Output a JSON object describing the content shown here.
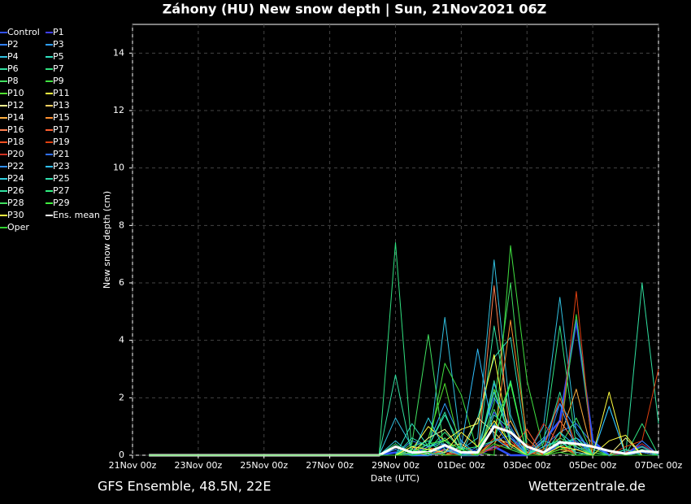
{
  "chart_data": {
    "type": "line",
    "title": "Záhony  (HU)  New snow depth | Sun, 21Nov2021 06Z",
    "y_label": "New snow depth (cm)",
    "x_label": "Date (UTC)",
    "source_left": "GFS Ensemble, 48.5N, 22E",
    "source_right": "Wetterzentrale.de",
    "xlim": [
      0,
      384
    ],
    "ylim": [
      0,
      15
    ],
    "xticks": [
      {
        "value": 0,
        "label": "21Nov 00z"
      },
      {
        "value": 48,
        "label": "23Nov 00z"
      },
      {
        "value": 96,
        "label": "25Nov 00z"
      },
      {
        "value": 144,
        "label": "27Nov 00z"
      },
      {
        "value": 192,
        "label": "29Nov 00z"
      },
      {
        "value": 240,
        "label": "01Dec 00z"
      },
      {
        "value": 288,
        "label": "03Dec 00z"
      },
      {
        "value": 336,
        "label": "05Dec 00z"
      },
      {
        "value": 384,
        "label": "07Dec 00z"
      }
    ],
    "yticks": [
      0,
      2,
      4,
      6,
      8,
      10,
      12,
      14
    ],
    "grid": true,
    "x": [
      12,
      24,
      36,
      48,
      60,
      72,
      84,
      96,
      108,
      120,
      132,
      144,
      156,
      168,
      180,
      192,
      204,
      216,
      228,
      240,
      252,
      264,
      276,
      288,
      300,
      312,
      324,
      336,
      348,
      360,
      372,
      384
    ],
    "series": [
      {
        "name": "Control",
        "color": "#3050ff",
        "values": [
          0,
          0,
          0,
          0,
          0,
          0,
          0,
          0,
          0,
          0,
          0,
          0,
          0,
          0,
          0,
          0.1,
          0,
          0,
          0.2,
          0,
          0,
          0.3,
          0,
          0,
          0.5,
          1.2,
          4.7,
          0.5,
          0,
          0.1,
          0.3,
          0
        ]
      },
      {
        "name": "P1",
        "color": "#4040ff",
        "values": [
          0,
          0,
          0,
          0,
          0,
          0,
          0,
          0,
          0,
          0,
          0,
          0,
          0,
          0,
          0,
          0,
          0.2,
          0.1,
          0.3,
          0,
          0.2,
          1.5,
          0.6,
          0.2,
          0.1,
          0.3,
          0.6,
          0.3,
          0,
          0,
          0.4,
          0
        ]
      },
      {
        "name": "P2",
        "color": "#3080ff",
        "values": [
          0,
          0,
          0,
          0,
          0,
          0,
          0,
          0,
          0,
          0,
          0,
          0,
          0,
          0,
          0,
          0,
          0.5,
          0.3,
          0.6,
          0,
          0.3,
          2.0,
          1.0,
          0,
          0.3,
          0.8,
          1.1,
          0.4,
          0,
          0,
          0.3,
          0
        ]
      },
      {
        "name": "P3",
        "color": "#30a0ff",
        "values": [
          0,
          0,
          0,
          0,
          0,
          0,
          0,
          0,
          0,
          0,
          0,
          0,
          0,
          0,
          0,
          0.2,
          0,
          0.4,
          1.8,
          0.5,
          0,
          2.5,
          0.8,
          0.1,
          0.6,
          1.8,
          0.9,
          0,
          0,
          0,
          0,
          0
        ]
      },
      {
        "name": "P4",
        "color": "#30c0e0",
        "values": [
          0,
          0,
          0,
          0,
          0,
          0,
          0,
          0,
          0,
          0,
          0,
          0,
          0,
          0,
          0,
          1.3,
          0.3,
          0,
          4.8,
          0.2,
          0.6,
          6.8,
          1.4,
          0,
          1.0,
          5.5,
          0.8,
          0,
          1.7,
          0,
          0.5,
          0
        ]
      },
      {
        "name": "P5",
        "color": "#30e0c0",
        "values": [
          0,
          0,
          0,
          0,
          0,
          0,
          0,
          0,
          0,
          0,
          0,
          0,
          0,
          0,
          0,
          0,
          1.1,
          0.3,
          0.5,
          0,
          1.3,
          3.4,
          4.1,
          0.2,
          0,
          0.4,
          0.6,
          0.1,
          0,
          0.2,
          0,
          0
        ]
      },
      {
        "name": "P6",
        "color": "#30e0a0",
        "values": [
          0,
          0,
          0,
          0,
          0,
          0,
          0,
          0,
          0,
          0,
          0,
          0,
          0,
          0,
          0,
          2.8,
          0,
          0.3,
          1.5,
          0,
          0,
          4.5,
          1.2,
          0.1,
          0.2,
          2.2,
          0,
          0,
          0,
          0,
          6.0,
          1.1
        ]
      },
      {
        "name": "P7",
        "color": "#30e080",
        "values": [
          0,
          0,
          0,
          0,
          0,
          0,
          0,
          0,
          0,
          0,
          0,
          0,
          0,
          0,
          0,
          7.4,
          0.1,
          0.2,
          0,
          0.3,
          0,
          0.5,
          2.5,
          0,
          0.4,
          4.5,
          0.3,
          0,
          0,
          0,
          1.1,
          0
        ]
      },
      {
        "name": "P8",
        "color": "#40e060",
        "values": [
          0,
          0,
          0,
          0,
          0,
          0,
          0,
          0,
          0,
          0,
          0,
          0,
          0,
          0,
          0,
          0,
          0.4,
          4.2,
          0,
          0.2,
          0,
          1.8,
          6.0,
          0.3,
          0,
          0.5,
          0,
          0.1,
          0,
          0,
          0,
          0
        ]
      },
      {
        "name": "P9",
        "color": "#40e040",
        "values": [
          0,
          0,
          0,
          0,
          0,
          0,
          0,
          0,
          0,
          0,
          0,
          0,
          0,
          0,
          0,
          0,
          0.1,
          0.2,
          3.2,
          2.1,
          0.1,
          0,
          7.3,
          2.6,
          0.2,
          0.6,
          4.9,
          0.2,
          0,
          0,
          0.3,
          0
        ]
      },
      {
        "name": "P10",
        "color": "#50e030",
        "values": [
          0,
          0,
          0,
          0,
          0,
          0,
          0,
          0,
          0,
          0,
          0,
          0,
          0,
          0,
          0,
          0,
          0,
          0.6,
          2.5,
          0.1,
          0.1,
          2.3,
          0.5,
          0,
          0.2,
          0.3,
          0,
          0,
          0,
          0,
          0,
          0
        ]
      },
      {
        "name": "P11",
        "color": "#ffff40",
        "values": [
          0,
          0,
          0,
          0,
          0,
          0,
          0,
          0,
          0,
          0,
          0,
          0,
          0,
          0,
          0,
          0,
          0.2,
          1.0,
          0.5,
          0.9,
          1.1,
          3.5,
          0.3,
          0,
          0,
          0.2,
          0.1,
          0,
          2.2,
          0,
          0.1,
          0
        ]
      },
      {
        "name": "P12",
        "color": "#ffff90",
        "values": [
          0,
          0,
          0,
          0,
          0,
          0,
          0,
          0,
          0,
          0,
          0,
          0,
          0,
          0,
          0,
          0,
          0.1,
          0.6,
          0.9,
          0.2,
          1.3,
          0.8,
          0.2,
          0,
          0,
          0.1,
          0.2,
          0,
          0,
          0.6,
          0,
          0
        ]
      },
      {
        "name": "P13",
        "color": "#ffd060",
        "values": [
          0,
          0,
          0,
          0,
          0,
          0,
          0,
          0,
          0,
          0,
          0,
          0,
          0,
          0,
          0,
          0,
          0,
          0.2,
          0.3,
          0.4,
          0,
          0.6,
          0.4,
          0,
          0,
          0.5,
          0.3,
          0,
          0,
          0,
          0,
          0
        ]
      },
      {
        "name": "P14",
        "color": "#ffb040",
        "values": [
          0,
          0,
          0,
          0,
          0,
          0,
          0,
          0,
          0,
          0,
          0,
          0,
          0,
          0,
          0,
          0,
          0.3,
          0,
          0.2,
          0.1,
          0,
          0.4,
          1.2,
          0.1,
          0,
          0.6,
          2.3,
          0,
          0,
          0,
          0,
          0
        ]
      },
      {
        "name": "P15",
        "color": "#ff9030",
        "values": [
          0,
          0,
          0,
          0,
          0,
          0,
          0,
          0,
          0,
          0,
          0,
          0,
          0,
          0,
          0,
          0,
          0,
          0.1,
          0,
          0.3,
          0,
          0.5,
          4.7,
          0.6,
          0,
          0.2,
          0.1,
          0,
          0,
          0,
          0,
          0
        ]
      },
      {
        "name": "P16",
        "color": "#ff8050",
        "values": [
          0,
          0,
          0,
          0,
          0,
          0,
          0,
          0,
          0,
          0,
          0,
          0,
          0,
          0,
          0,
          0,
          0.1,
          0,
          0.2,
          0,
          0,
          5.9,
          0.5,
          0,
          0,
          1.2,
          0.4,
          0,
          0,
          0,
          0.1,
          0
        ]
      },
      {
        "name": "P17",
        "color": "#ff6030",
        "values": [
          0,
          0,
          0,
          0,
          0,
          0,
          0,
          0,
          0,
          0,
          0,
          0,
          0,
          0,
          0,
          0,
          0,
          0.3,
          0,
          0.1,
          0,
          0.4,
          0.2,
          0.9,
          0,
          0.3,
          0.1,
          0,
          0,
          0,
          0,
          0
        ]
      },
      {
        "name": "P18",
        "color": "#ff5020",
        "values": [
          0,
          0,
          0,
          0,
          0,
          0,
          0,
          0,
          0,
          0,
          0,
          0,
          0,
          0,
          0,
          0,
          0,
          0,
          0.2,
          0,
          0,
          0.3,
          0.4,
          0,
          0.2,
          2.0,
          0.3,
          0,
          0,
          0,
          0.2,
          0
        ]
      },
      {
        "name": "P19",
        "color": "#e04010",
        "values": [
          0,
          0,
          0,
          0,
          0,
          0,
          0,
          0,
          0,
          0,
          0,
          0,
          0,
          0,
          0,
          0,
          0,
          0.1,
          0,
          0,
          0,
          0.6,
          0.3,
          0.4,
          0,
          0.5,
          5.7,
          0,
          0,
          0.3,
          0.5,
          3.0
        ]
      },
      {
        "name": "P20",
        "color": "#d03020",
        "values": [
          0,
          0,
          0,
          0,
          0,
          0,
          0,
          0,
          0,
          0,
          0,
          0,
          0,
          0,
          0,
          0,
          0,
          0,
          0.1,
          0,
          0.1,
          0.2,
          0.5,
          0,
          1.1,
          0.4,
          0,
          0,
          0,
          0.1,
          0.4,
          0
        ]
      },
      {
        "name": "P21",
        "color": "#3070ff",
        "values": [
          0,
          0,
          0,
          0,
          0,
          0,
          0,
          0,
          0,
          0,
          0,
          0,
          0,
          0,
          0,
          0,
          0.2,
          0,
          0.3,
          0,
          0.2,
          0.5,
          0.7,
          0,
          0,
          0.4,
          0.5,
          0,
          0,
          0,
          0.5,
          0
        ]
      },
      {
        "name": "P22",
        "color": "#3090ff",
        "values": [
          0,
          0,
          0,
          0,
          0,
          0,
          0,
          0,
          0,
          0,
          0,
          0,
          0,
          0,
          0,
          0,
          0,
          0.3,
          0.4,
          0,
          0,
          1.1,
          0.3,
          0,
          0,
          1.8,
          0.2,
          0.3,
          0,
          0,
          0.1,
          0
        ]
      },
      {
        "name": "P23",
        "color": "#30c0ff",
        "values": [
          0,
          0,
          0,
          0,
          0,
          0,
          0,
          0,
          0,
          0,
          0,
          0,
          0,
          0,
          0,
          0,
          0,
          0,
          0.1,
          0.3,
          3.7,
          0.6,
          0.2,
          0,
          0,
          0.8,
          0.3,
          0,
          1.7,
          0,
          0,
          0
        ]
      },
      {
        "name": "P24",
        "color": "#30d0e0",
        "values": [
          0,
          0,
          0,
          0,
          0,
          0,
          0,
          0,
          0,
          0,
          0,
          0,
          0,
          0,
          0,
          0.5,
          0,
          1.3,
          0.2,
          0,
          0.1,
          2.2,
          0.6,
          0,
          0.3,
          0.5,
          0.1,
          0,
          0,
          0,
          0,
          0
        ]
      },
      {
        "name": "P25",
        "color": "#30e0b0",
        "values": [
          0,
          0,
          0,
          0,
          0,
          0,
          0,
          0,
          0,
          0,
          0,
          0,
          0,
          0,
          0,
          0,
          0.6,
          0.3,
          1.4,
          0.3,
          0,
          1.4,
          0.9,
          0,
          0.5,
          0.3,
          0.6,
          0,
          0,
          0,
          0,
          0
        ]
      },
      {
        "name": "P26",
        "color": "#30e0a0",
        "values": [
          0,
          0,
          0,
          0,
          0,
          0,
          0,
          0,
          0,
          0,
          0,
          0,
          0,
          0,
          0,
          0,
          0.3,
          0.5,
          0,
          0,
          0,
          2.6,
          0.4,
          0,
          0,
          0.8,
          0,
          0,
          0,
          0.2,
          0,
          0
        ]
      },
      {
        "name": "P27",
        "color": "#30f080",
        "values": [
          0,
          0,
          0,
          0,
          0,
          0,
          0,
          0,
          0,
          0,
          0,
          0,
          0,
          0,
          0,
          0.4,
          0,
          0.2,
          0.8,
          0.2,
          0.3,
          0.5,
          2.6,
          0,
          0,
          0.6,
          0.3,
          0,
          0,
          0,
          0.2,
          0
        ]
      },
      {
        "name": "P28",
        "color": "#40e060",
        "values": [
          0,
          0,
          0,
          0,
          0,
          0,
          0,
          0,
          0,
          0,
          0,
          0,
          0,
          0,
          0,
          0,
          0.2,
          0,
          0.6,
          0,
          0,
          1.6,
          0.3,
          0,
          0,
          0.3,
          1.3,
          0,
          0,
          0,
          0,
          0
        ]
      },
      {
        "name": "P29",
        "color": "#40f040",
        "values": [
          0,
          0,
          0,
          0,
          0,
          0,
          0,
          0,
          0,
          0,
          0,
          0,
          0,
          0,
          0,
          0,
          0.1,
          0.4,
          0.5,
          0.2,
          0,
          1.0,
          2.5,
          0,
          0,
          0.2,
          0.4,
          0,
          0,
          0,
          0,
          0
        ]
      },
      {
        "name": "P30",
        "color": "#ffff40",
        "values": [
          0,
          0,
          0,
          0,
          0,
          0,
          0,
          0,
          0,
          0,
          0,
          0,
          0,
          0,
          0,
          0,
          0.3,
          0.2,
          0.1,
          0.8,
          0.3,
          1.2,
          0.4,
          0,
          0,
          0.3,
          0.2,
          0,
          0.5,
          0.7,
          0,
          0
        ]
      },
      {
        "name": "Ens. mean",
        "color": "#ffffff",
        "values": [
          0,
          0,
          0,
          0,
          0,
          0,
          0,
          0,
          0,
          0,
          0,
          0,
          0,
          0,
          0,
          0.3,
          0.1,
          0.1,
          0.35,
          0.1,
          0.1,
          1.0,
          0.8,
          0.3,
          0.1,
          0.45,
          0.4,
          0.3,
          0.15,
          0.05,
          0.15,
          0.1
        ]
      },
      {
        "name": "Oper",
        "color": "#30d030",
        "values": [
          0,
          0,
          0,
          0,
          0,
          0,
          0,
          0,
          0,
          0,
          0,
          0,
          0,
          0,
          0,
          0,
          0,
          0.1,
          0,
          0,
          0,
          0.4,
          0.2,
          0,
          0,
          0.1,
          0,
          0,
          0,
          0,
          0,
          0
        ]
      }
    ]
  }
}
